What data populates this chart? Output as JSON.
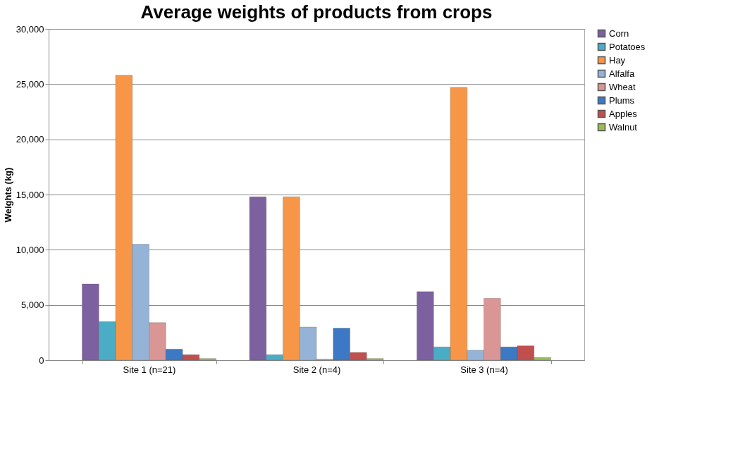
{
  "chart_data": {
    "type": "bar",
    "title": "Average weights of products from crops",
    "ylabel": "Weights (kg)",
    "categories": [
      "Site 1 (n=21)",
      "Site 2 (n=4)",
      "Site 3 (n=4)"
    ],
    "series": [
      {
        "name": "Corn",
        "color": "#7d60a0",
        "values": [
          6900,
          14800,
          6200
        ]
      },
      {
        "name": "Potatoes",
        "color": "#4bacc6",
        "values": [
          3500,
          500,
          1200
        ]
      },
      {
        "name": "Hay",
        "color": "#f79646",
        "values": [
          25800,
          14800,
          24700
        ]
      },
      {
        "name": "Alfalfa",
        "color": "#95b3d7",
        "values": [
          10500,
          3000,
          900
        ]
      },
      {
        "name": "Wheat",
        "color": "#d99694",
        "values": [
          3400,
          100,
          5600
        ]
      },
      {
        "name": "Plums",
        "color": "#3c78c3",
        "values": [
          1000,
          2900,
          1200
        ]
      },
      {
        "name": "Apples",
        "color": "#c0504d",
        "values": [
          500,
          700,
          1300
        ]
      },
      {
        "name": "Walnut",
        "color": "#9bbb59",
        "values": [
          150,
          150,
          250
        ]
      }
    ],
    "ylim": [
      0,
      30000
    ],
    "yticks": [
      {
        "value": 0,
        "label": "0"
      },
      {
        "value": 5000,
        "label": "5,000"
      },
      {
        "value": 10000,
        "label": "10,000"
      },
      {
        "value": 15000,
        "label": "15,000"
      },
      {
        "value": 20000,
        "label": "20,000"
      },
      {
        "value": 25000,
        "label": "25,000"
      },
      {
        "value": 30000,
        "label": "30,000"
      }
    ],
    "grid": "y",
    "legend": "right"
  }
}
